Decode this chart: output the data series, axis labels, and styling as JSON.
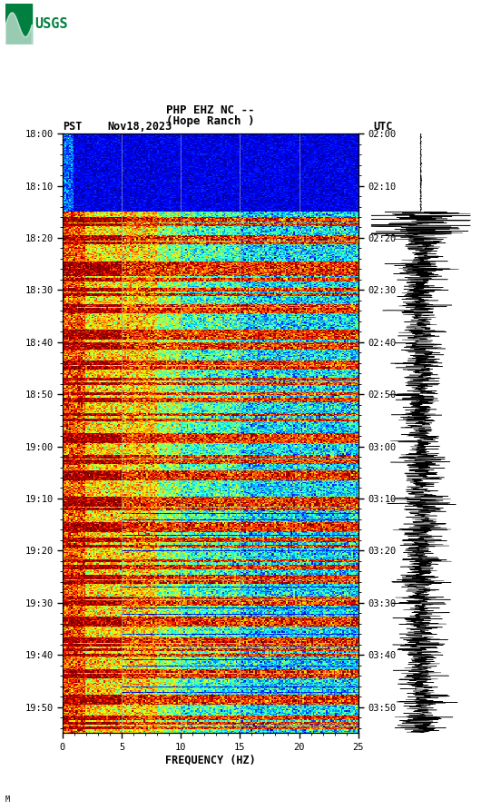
{
  "title_line1": "PHP EHZ NC --",
  "title_line2": "(Hope Ranch )",
  "label_left": "PST",
  "label_date": "Nov18,2023",
  "label_right": "UTC",
  "freq_label": "FREQUENCY (HZ)",
  "freq_min": 0,
  "freq_max": 25,
  "pst_ticks": [
    "18:00",
    "18:10",
    "18:20",
    "18:30",
    "18:40",
    "18:50",
    "19:00",
    "19:10",
    "19:20",
    "19:30",
    "19:40",
    "19:50"
  ],
  "utc_ticks": [
    "02:00",
    "02:10",
    "02:20",
    "02:30",
    "02:40",
    "02:50",
    "03:00",
    "03:10",
    "03:20",
    "03:30",
    "03:40",
    "03:50"
  ],
  "freq_ticks": [
    0,
    5,
    10,
    15,
    20,
    25
  ],
  "bg_color": "#ffffff",
  "fig_width": 5.52,
  "fig_height": 8.92,
  "usgs_logo_color": "#007f3f",
  "grid_color": "#aaaaaa",
  "grid_alpha": 0.7,
  "n_time": 600,
  "n_freq": 200,
  "duration_minutes": 115
}
